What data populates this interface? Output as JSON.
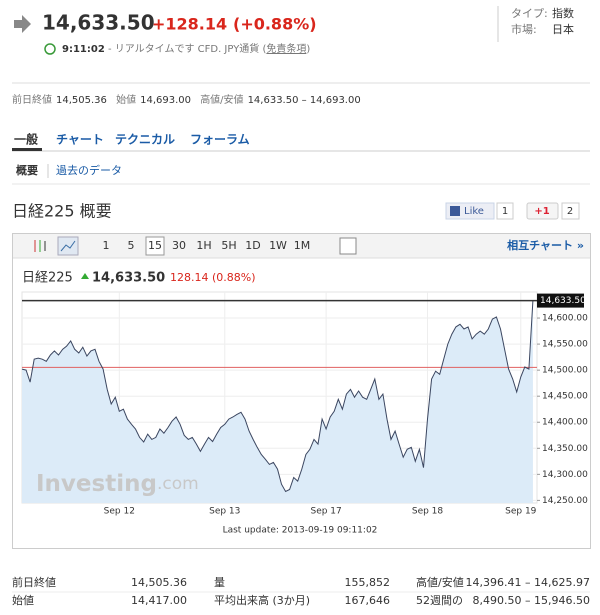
{
  "header": {
    "price": "14,633.50",
    "change": "+128.14",
    "change_pct": "(+0.88%)",
    "type_label": "タイプ:",
    "type_value": "指数",
    "market_label": "市場:",
    "market_value": "日本",
    "time": "9:11:02",
    "realtime_note": " - リアルタイムです CFD. JPY通貨 (",
    "disclaimer": "免責条項",
    "close_paren": ")"
  },
  "summary": [
    {
      "label": "前日終値",
      "value": "14,505.36"
    },
    {
      "label": "始値",
      "value": "14,693.00"
    },
    {
      "label": "高値/安値",
      "value": "14,633.50 – 14,693.00"
    }
  ],
  "tabs": [
    "一般",
    "チャート",
    "テクニカル",
    "フォーラム"
  ],
  "subtabs": [
    "概要",
    "過去のデータ"
  ],
  "section_title": "日経225 概要",
  "social": {
    "like": "Like",
    "like_count": "1",
    "plus": "+1",
    "plus_count": "2"
  },
  "toolbar": {
    "intervals": [
      "1",
      "5",
      "15",
      "30",
      "1H",
      "5H",
      "1D",
      "1W",
      "1M"
    ],
    "active_interval": 2,
    "compare": "相互チャート »"
  },
  "chart_data": {
    "type": "line",
    "name": "日経225",
    "last": "14,633.50",
    "change": "128.14 (0.88%)",
    "color": "#3b4660",
    "fill": "#dcebf8",
    "values": [
      14502,
      14500,
      14477,
      14521,
      14523,
      14521,
      14517,
      14529,
      14537,
      14529,
      14540,
      14546,
      14556,
      14540,
      14533,
      14544,
      14527,
      14537,
      14540,
      14517,
      14502,
      14463,
      14435,
      14448,
      14421,
      14425,
      14406,
      14396,
      14387,
      14371,
      14362,
      14377,
      14367,
      14371,
      14387,
      14379,
      14390,
      14402,
      14410,
      14396,
      14375,
      14367,
      14371,
      14358,
      14344,
      14358,
      14371,
      14363,
      14377,
      14390,
      14396,
      14406,
      14410,
      14415,
      14419,
      14406,
      14383,
      14367,
      14352,
      14338,
      14329,
      14319,
      14323,
      14310,
      14281,
      14267,
      14271,
      14294,
      14287,
      14310,
      14338,
      14348,
      14367,
      14358,
      14406,
      14387,
      14410,
      14421,
      14444,
      14425,
      14454,
      14463,
      14448,
      14460,
      14448,
      14444,
      14463,
      14483,
      14444,
      14454,
      14406,
      14367,
      14383,
      14358,
      14333,
      14348,
      14352,
      14325,
      14348,
      14313,
      14406,
      14483,
      14498,
      14492,
      14521,
      14550,
      14569,
      14583,
      14588,
      14579,
      14583,
      14560,
      14569,
      14575,
      14569,
      14579,
      14598,
      14602,
      14579,
      14540,
      14502,
      14483,
      14458,
      14487,
      14506,
      14502,
      14633.5
    ],
    "xlim": [
      0,
      127
    ],
    "xticks": [
      {
        "value": 24,
        "label": "Sep 12"
      },
      {
        "value": 50,
        "label": "Sep 13"
      },
      {
        "value": 75,
        "label": "Sep 17"
      },
      {
        "value": 100,
        "label": "Sep 18"
      },
      {
        "value": 123,
        "label": "Sep 19"
      }
    ],
    "ylim": [
      14245,
      14650
    ],
    "yticks": [
      {
        "value": 14250,
        "label": "14,250.00"
      },
      {
        "value": 14300,
        "label": "14,300.00"
      },
      {
        "value": 14350,
        "label": "14,350.00"
      },
      {
        "value": 14400,
        "label": "14,400.00"
      },
      {
        "value": 14450,
        "label": "14,450.00"
      },
      {
        "value": 14500,
        "label": "14,500.00"
      },
      {
        "value": 14550,
        "label": "14,550.00"
      },
      {
        "value": 14600,
        "label": "14,600.00"
      }
    ],
    "grid": true,
    "reference_line": {
      "value": 14505.36,
      "color": "#e06060"
    },
    "last_line": {
      "value": 14633.5,
      "label": "14,633.50"
    },
    "watermark": [
      "Investing",
      ".com"
    ],
    "footer": "Last update: 2013-09-19 09:11:02"
  },
  "stats": [
    [
      {
        "label": "前日終値",
        "value": "14,505.36"
      },
      {
        "label": "量",
        "value": "155,852"
      },
      {
        "label": "高値/安値",
        "value": "14,396.41 – 14,625.97"
      }
    ],
    [
      {
        "label": "始値",
        "value": "14,417.00"
      },
      {
        "label": "平均出来高 (3か月)",
        "value": "167,646"
      },
      {
        "label": "52週間の",
        "value": "8,490.50 – 15,946.50"
      }
    ]
  ]
}
